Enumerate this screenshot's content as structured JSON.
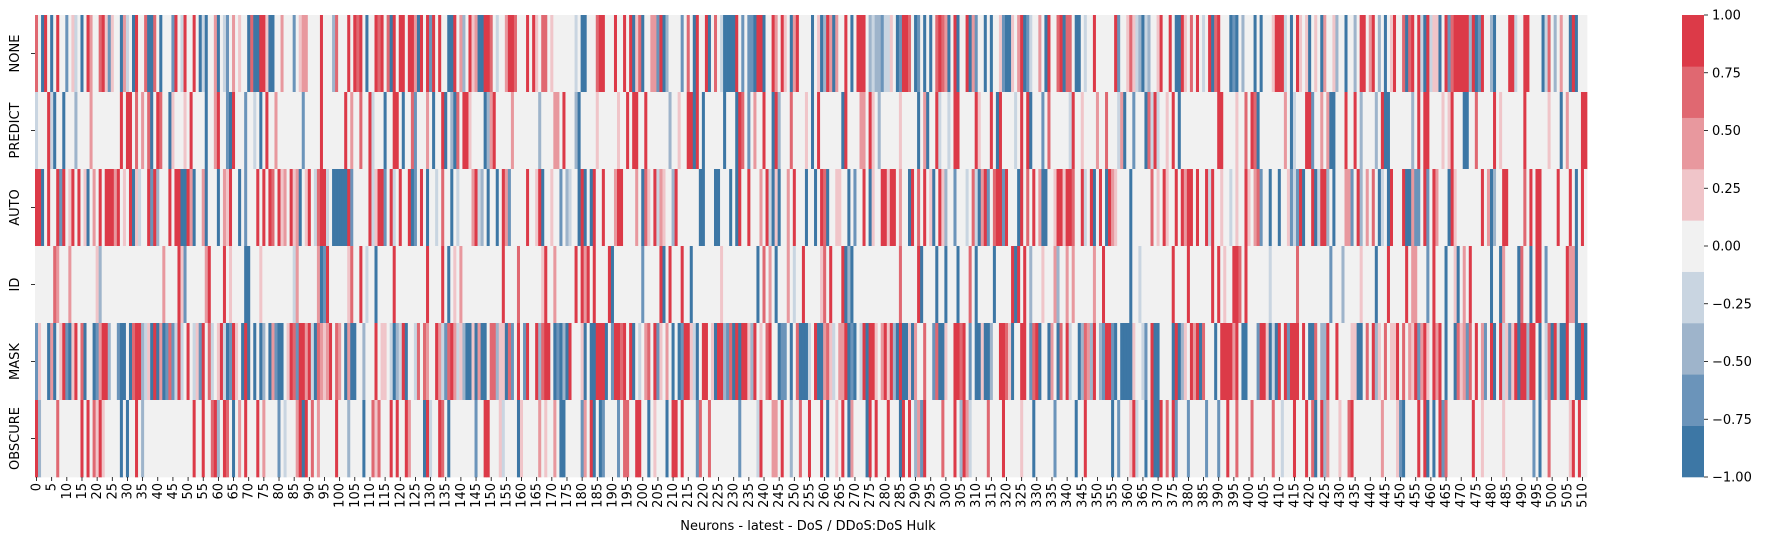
{
  "chart_data": {
    "type": "heatmap",
    "title": "",
    "xlabel": "Neurons - latest - DoS / DDoS:DoS Hulk",
    "ylabel": "",
    "rows": [
      "NONE",
      "PREDICT",
      "AUTO",
      "ID",
      "MASK",
      "OBSCURE"
    ],
    "n_columns": 512,
    "x_tick_step": 5,
    "value_range": [
      -1.0,
      1.0
    ],
    "colorbar": {
      "ticks": [
        1.0,
        0.75,
        0.5,
        0.25,
        0.0,
        -0.25,
        -0.5,
        -0.75,
        -1.0
      ],
      "tick_labels": [
        "1.00",
        "0.75",
        "0.50",
        "0.25",
        "0.00",
        "−0.25",
        "−0.50",
        "−0.75",
        "−1.00"
      ],
      "levels": [
        -1.0,
        -0.75,
        -0.5,
        -0.25,
        0.0,
        0.25,
        0.5,
        0.75,
        1.0
      ],
      "level_colors": [
        "#3d77a5",
        "#6b94ba",
        "#9eb4cb",
        "#c9d5e1",
        "#f1f1f1",
        "#f0c5c9",
        "#e8989e",
        "#e06871",
        "#dc3a48"
      ]
    },
    "row_profiles": [
      {
        "name": "NONE",
        "p_zero": 0.38,
        "p_pos": 0.37
      },
      {
        "name": "PREDICT",
        "p_zero": 0.64,
        "p_pos": 0.23
      },
      {
        "name": "AUTO",
        "p_zero": 0.42,
        "p_pos": 0.38
      },
      {
        "name": "ID",
        "p_zero": 0.7,
        "p_pos": 0.2
      },
      {
        "name": "MASK",
        "p_zero": 0.26,
        "p_pos": 0.41
      },
      {
        "name": "OBSCURE",
        "p_zero": 0.66,
        "p_pos": 0.22
      }
    ]
  }
}
